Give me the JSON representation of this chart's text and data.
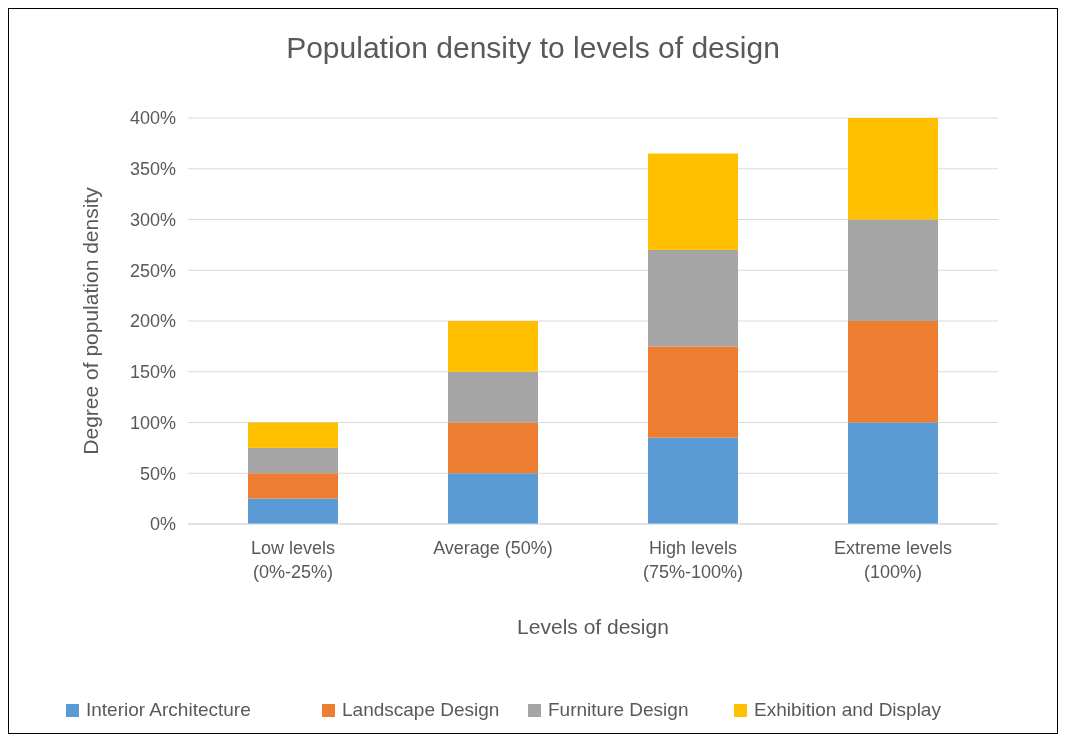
{
  "chart_data": {
    "type": "bar",
    "title": "Population density to levels of design",
    "xlabel": "Levels of design",
    "ylabel": "Degree of population density",
    "categories": [
      "Low levels (0%-25%)",
      "Average (50%)",
      "High levels (75%-100%)",
      "Extreme levels (100%)"
    ],
    "series": [
      {
        "name": "Interior Architecture",
        "color": "#5b9bd5",
        "values": [
          25,
          50,
          85,
          100
        ]
      },
      {
        "name": "Landscape Design",
        "color": "#ed7d31",
        "values": [
          25,
          50,
          90,
          100
        ]
      },
      {
        "name": "Furniture Design",
        "color": "#a5a5a5",
        "values": [
          25,
          50,
          95,
          100
        ]
      },
      {
        "name": "Exhibition and Display",
        "color": "#ffc000",
        "values": [
          25,
          50,
          95,
          100
        ]
      }
    ],
    "stacked": true,
    "ylim": [
      0,
      400
    ],
    "yticks": [
      {
        "value": 0,
        "label": "0%"
      },
      {
        "value": 50,
        "label": "50%"
      },
      {
        "value": 100,
        "label": "100%"
      },
      {
        "value": 150,
        "label": "150%"
      },
      {
        "value": 200,
        "label": "200%"
      },
      {
        "value": 250,
        "label": "250%"
      },
      {
        "value": 300,
        "label": "300%"
      },
      {
        "value": 350,
        "label": "350%"
      },
      {
        "value": 400,
        "label": "400%"
      }
    ],
    "grid": "y",
    "legend": "bottom"
  }
}
